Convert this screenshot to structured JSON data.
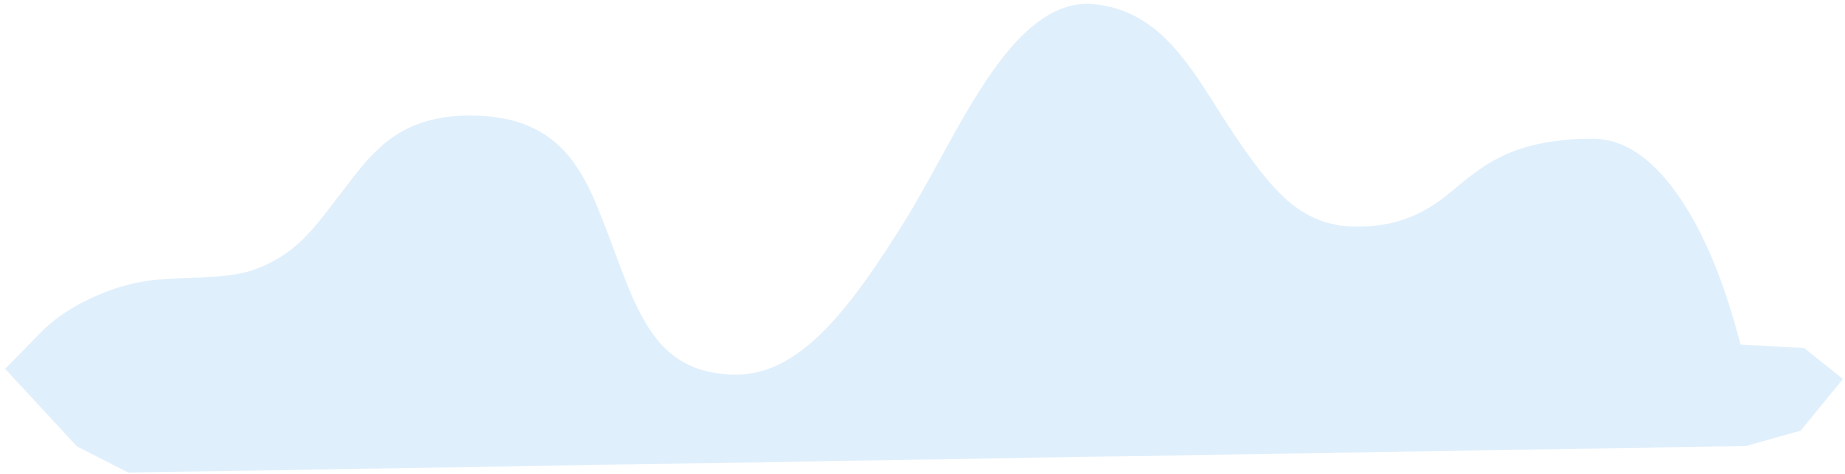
{
  "background_color": "#ffffff",
  "shape": {
    "fill_color": "#e0effc",
    "stroke_color": "#ffffff"
  }
}
